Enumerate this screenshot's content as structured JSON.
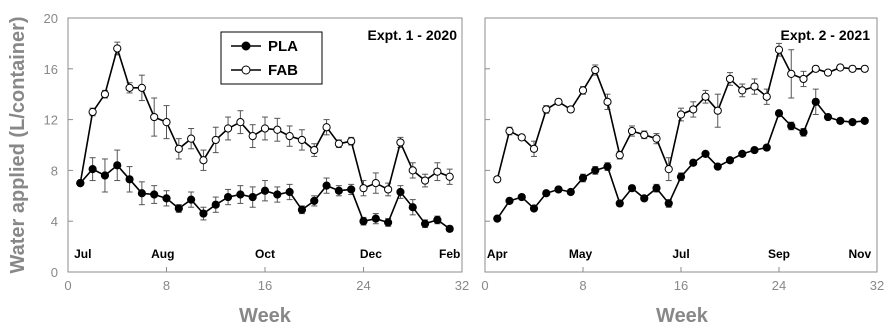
{
  "chart_data": [
    {
      "type": "line",
      "title": "Expt. 1 - 2020",
      "xlabel": "Week",
      "ylabel": "Water applied (L/container)",
      "xlim": [
        0,
        32
      ],
      "ylim": [
        0,
        20
      ],
      "xticks": [
        "0",
        "8",
        "16",
        "24",
        "32"
      ],
      "yticks": [
        "0",
        "4",
        "8",
        "12",
        "16",
        "20"
      ],
      "month_labels": [
        {
          "text": "Jul",
          "week": 1.2
        },
        {
          "text": "Aug",
          "week": 7.7
        },
        {
          "text": "Oct",
          "week": 16.0
        },
        {
          "text": "Dec",
          "week": 24.6
        },
        {
          "text": "Feb",
          "week": 31.0
        }
      ],
      "legend": {
        "position": "top-center",
        "entries": [
          "PLA",
          "FAB"
        ]
      },
      "x": [
        1,
        2,
        3,
        4,
        5,
        6,
        7,
        8,
        9,
        10,
        11,
        12,
        13,
        14,
        15,
        16,
        17,
        18,
        19,
        20,
        21,
        22,
        23,
        24,
        25,
        26,
        27,
        28,
        29,
        30,
        31
      ],
      "series": [
        {
          "name": "FAB",
          "marker": "open-circle",
          "values": [
            7.0,
            12.6,
            14.0,
            17.6,
            14.5,
            14.5,
            12.2,
            11.8,
            9.7,
            10.5,
            8.8,
            10.4,
            11.3,
            11.8,
            10.7,
            11.3,
            11.2,
            10.7,
            10.4,
            9.6,
            11.4,
            10.1,
            10.3,
            6.6,
            7.0,
            6.5,
            10.2,
            8.0,
            7.2,
            7.9,
            7.5
          ],
          "errors": [
            0.0,
            0.3,
            0.3,
            0.5,
            0.4,
            1.0,
            1.5,
            1.3,
            0.8,
            0.8,
            0.8,
            1.0,
            0.9,
            0.9,
            0.9,
            0.9,
            0.9,
            0.8,
            0.8,
            0.5,
            0.6,
            0.3,
            0.3,
            0.6,
            0.8,
            0.5,
            0.4,
            0.6,
            0.5,
            0.7,
            0.6
          ]
        },
        {
          "name": "PLA",
          "marker": "filled-circle",
          "values": [
            7.0,
            8.1,
            7.6,
            8.4,
            7.3,
            6.2,
            6.1,
            5.8,
            5.0,
            5.7,
            4.6,
            5.3,
            5.9,
            6.1,
            5.9,
            6.4,
            6.1,
            6.3,
            4.9,
            5.6,
            6.8,
            6.4,
            6.5,
            4.0,
            4.2,
            3.9,
            6.3,
            5.1,
            3.8,
            4.1,
            3.4
          ],
          "errors": [
            0.0,
            0.9,
            1.3,
            1.2,
            1.0,
            0.9,
            0.7,
            0.6,
            0.3,
            0.6,
            0.5,
            0.6,
            0.6,
            0.7,
            0.8,
            0.8,
            0.6,
            0.6,
            0.3,
            0.4,
            0.6,
            0.4,
            0.4,
            0.3,
            0.4,
            0.3,
            0.5,
            0.6,
            0.3,
            0.3,
            0.2
          ]
        }
      ]
    },
    {
      "type": "line",
      "title": "Expt. 2 - 2021",
      "xlabel": "Week",
      "ylabel": "",
      "xlim": [
        0,
        32
      ],
      "ylim": [
        0,
        20
      ],
      "xticks": [
        "0",
        "8",
        "16",
        "24",
        "32"
      ],
      "yticks": [],
      "month_labels": [
        {
          "text": "Apr",
          "week": 1.0
        },
        {
          "text": "May",
          "week": 7.8
        },
        {
          "text": "Jul",
          "week": 16.0
        },
        {
          "text": "Sep",
          "week": 24.0
        },
        {
          "text": "Nov",
          "week": 30.6
        }
      ],
      "x": [
        1,
        2,
        3,
        4,
        5,
        6,
        7,
        8,
        9,
        10,
        11,
        12,
        13,
        14,
        15,
        16,
        17,
        18,
        19,
        20,
        21,
        22,
        23,
        24,
        25,
        26,
        27,
        28,
        29,
        30,
        31
      ],
      "series": [
        {
          "name": "FAB",
          "marker": "open-circle",
          "values": [
            7.3,
            11.1,
            10.6,
            9.7,
            12.8,
            13.4,
            12.8,
            14.3,
            15.9,
            13.4,
            9.2,
            11.1,
            10.8,
            10.5,
            8.1,
            12.4,
            12.8,
            13.8,
            12.7,
            15.2,
            14.3,
            14.6,
            13.8,
            17.5,
            15.6,
            15.2,
            16.0,
            15.7,
            16.1,
            16.0,
            16.0
          ],
          "errors": [
            0.0,
            0.3,
            0.2,
            0.6,
            0.3,
            0.2,
            0.2,
            0.3,
            0.4,
            0.6,
            0.3,
            0.4,
            0.3,
            0.4,
            0.9,
            0.5,
            0.6,
            0.5,
            1.3,
            0.5,
            0.5,
            0.6,
            0.6,
            0.5,
            1.9,
            0.6,
            0.2,
            0.2,
            0.2,
            0.2,
            0.2
          ]
        },
        {
          "name": "PLA",
          "marker": "filled-circle",
          "values": [
            4.2,
            5.6,
            5.9,
            5.0,
            6.2,
            6.5,
            6.3,
            7.4,
            8.0,
            8.3,
            5.4,
            6.6,
            5.8,
            6.6,
            5.4,
            7.5,
            8.6,
            9.3,
            8.3,
            8.8,
            9.3,
            9.6,
            9.8,
            12.5,
            11.5,
            11.0,
            13.4,
            12.2,
            11.9,
            11.8,
            11.9
          ],
          "errors": [
            0.0,
            0.2,
            0.2,
            0.2,
            0.2,
            0.2,
            0.2,
            0.3,
            0.3,
            0.3,
            0.2,
            0.2,
            0.2,
            0.3,
            0.3,
            0.3,
            0.2,
            0.2,
            0.2,
            0.2,
            0.2,
            0.2,
            0.2,
            0.2,
            0.3,
            0.3,
            1.0,
            0.2,
            0.2,
            0.2,
            0.2
          ]
        }
      ]
    }
  ]
}
